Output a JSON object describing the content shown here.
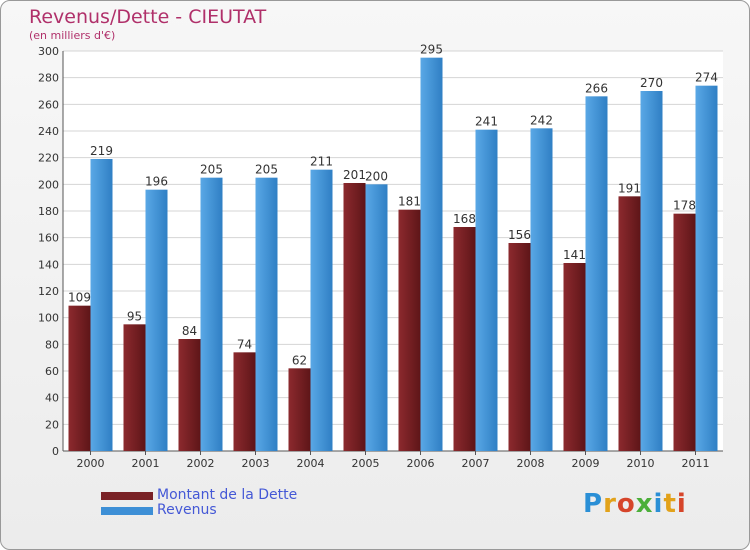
{
  "title": "Revenus/Dette - CIEUTAT",
  "subtitle": "(en milliers d'€)",
  "colors": {
    "dette": "#7a2226",
    "revenus": "#3d8fd6",
    "title": "#b0306a",
    "legend_text": "#4458d6"
  },
  "legend": {
    "dette": "Montant de la Dette",
    "revenus": "Revenus"
  },
  "logo": "Proxiti",
  "chart_data": {
    "type": "bar",
    "title": "Revenus/Dette - CIEUTAT",
    "ylabel": "(en milliers d'€)",
    "xlabel": "",
    "categories": [
      "2000",
      "2001",
      "2002",
      "2003",
      "2004",
      "2005",
      "2006",
      "2007",
      "2008",
      "2009",
      "2010",
      "2011"
    ],
    "series": [
      {
        "name": "Montant de la Dette",
        "values": [
          109,
          95,
          84,
          74,
          62,
          201,
          181,
          168,
          156,
          141,
          191,
          178
        ]
      },
      {
        "name": "Revenus",
        "values": [
          219,
          196,
          205,
          205,
          211,
          200,
          295,
          241,
          242,
          266,
          270,
          274
        ]
      }
    ],
    "ylim": [
      0,
      300
    ],
    "yticks": [
      0,
      20,
      40,
      60,
      80,
      100,
      120,
      140,
      160,
      180,
      200,
      220,
      240,
      260,
      280,
      300
    ],
    "grid": true,
    "legend_position": "bottom-left"
  }
}
